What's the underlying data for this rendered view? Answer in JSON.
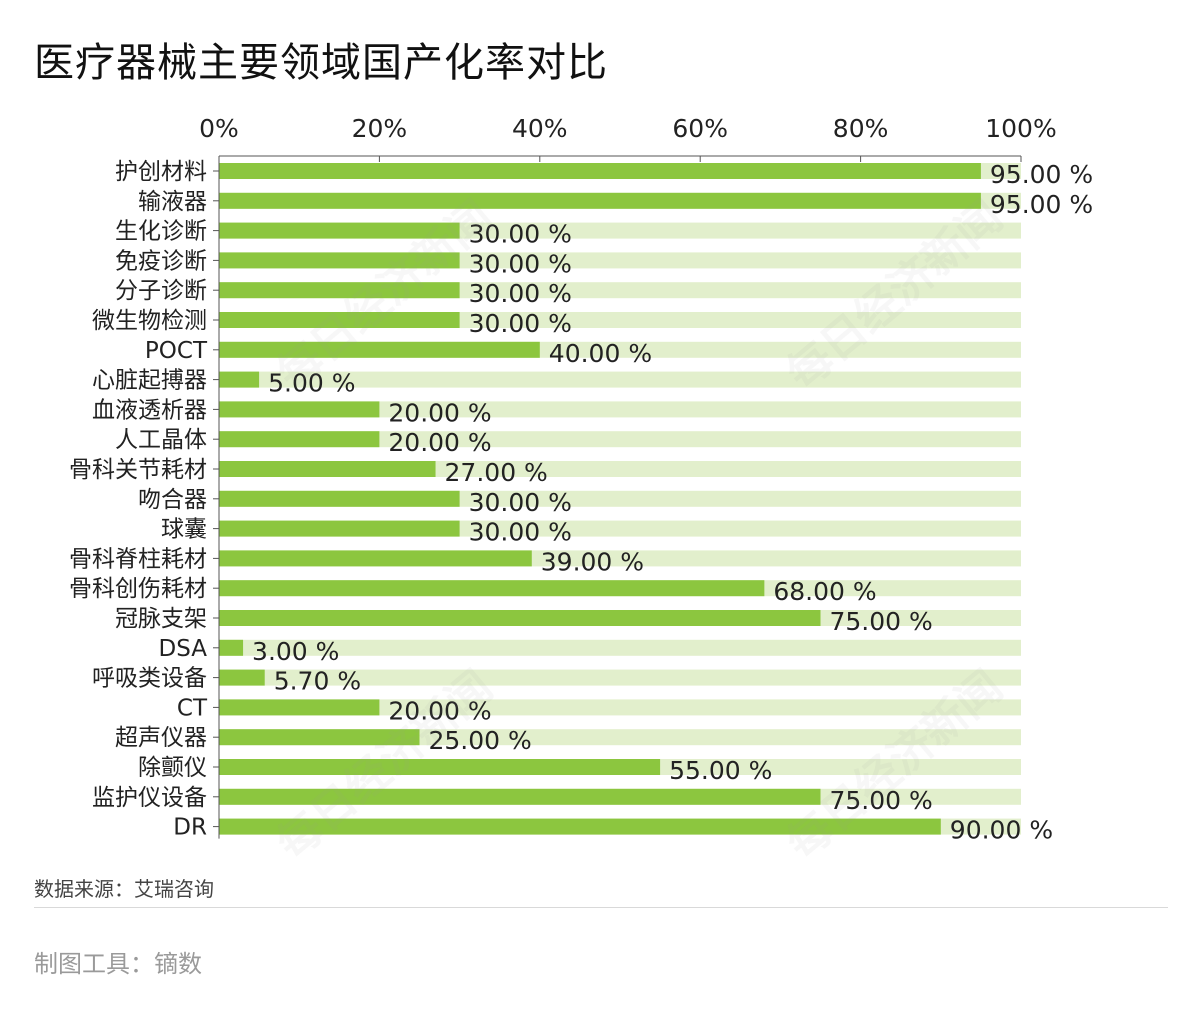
{
  "title": "医疗器械主要领域国产化率对比",
  "source": "数据来源：艾瑞咨询",
  "tool": "制图工具：镝数",
  "watermark": "每日经济新闻",
  "colors": {
    "bar": "#8cc63f",
    "track": "#e2efcc",
    "axis": "#555555"
  },
  "chart_data": {
    "type": "bar",
    "orientation": "horizontal",
    "title": "医疗器械主要领域国产化率对比",
    "xlim": [
      0,
      100
    ],
    "x_ticks": [
      "0%",
      "20%",
      "40%",
      "60%",
      "80%",
      "100%"
    ],
    "x_axis_position": "top",
    "categories": [
      "护创材料",
      "输液器",
      "生化诊断",
      "免疫诊断",
      "分子诊断",
      "微生物检测",
      "POCT",
      "心脏起搏器",
      "血液透析器",
      "人工晶体",
      "骨科关节耗材",
      "吻合器",
      "球囊",
      "骨科脊柱耗材",
      "骨科创伤耗材",
      "冠脉支架",
      "DSA",
      "呼吸类设备",
      "CT",
      "超声仪器",
      "除颤仪",
      "监护仪设备",
      "DR"
    ],
    "values": [
      95,
      95,
      30,
      30,
      30,
      30,
      40,
      5,
      20,
      20,
      27,
      30,
      30,
      39,
      68,
      75,
      3,
      5.7,
      20,
      25,
      55,
      75,
      90
    ],
    "value_labels": [
      "95.00 %",
      "95.00 %",
      "30.00 %",
      "30.00 %",
      "30.00 %",
      "30.00 %",
      "40.00 %",
      "5.00 %",
      "20.00 %",
      "20.00 %",
      "27.00 %",
      "30.00 %",
      "30.00 %",
      "39.00 %",
      "68.00 %",
      "75.00 %",
      "3.00 %",
      "5.70 %",
      "20.00 %",
      "25.00 %",
      "55.00 %",
      "75.00 %",
      "90.00 %"
    ],
    "grid": false,
    "legend": "none"
  }
}
